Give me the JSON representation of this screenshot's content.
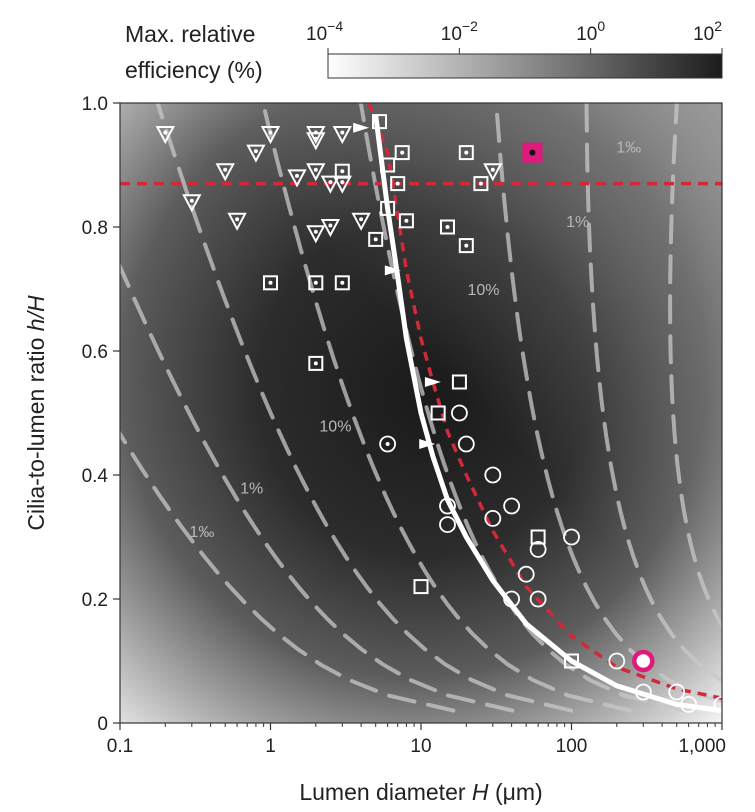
{
  "chart_data": {
    "type": "heatmap",
    "xlabel": "Lumen diameter",
    "xlabel_symbol": "H",
    "xlabel_unit": "(μm)",
    "ylabel": "Cilia-to-lumen ratio",
    "ylabel_symbol": "h/H",
    "xscale": "log",
    "xlim": [
      0.1,
      1000
    ],
    "ylim": [
      0,
      1
    ],
    "xticks": [
      {
        "value": 0.1,
        "label": "0.1"
      },
      {
        "value": 1,
        "label": "1"
      },
      {
        "value": 10,
        "label": "10"
      },
      {
        "value": 100,
        "label": "100"
      },
      {
        "value": 1000,
        "label": "1,000"
      }
    ],
    "yticks": [
      {
        "value": 0,
        "label": "0"
      },
      {
        "value": 0.2,
        "label": "0.2"
      },
      {
        "value": 0.4,
        "label": "0.4"
      },
      {
        "value": 0.6,
        "label": "0.6"
      },
      {
        "value": 0.8,
        "label": "0.8"
      },
      {
        "value": 1.0,
        "label": "1.0"
      }
    ],
    "colorbar": {
      "title_lines": [
        "Max. relative",
        "efficiency (%)"
      ],
      "scale": "log",
      "range": [
        0.0001,
        100
      ],
      "ticks": [
        {
          "value": 0.0001,
          "base": "10",
          "exp": "−4"
        },
        {
          "value": 0.01,
          "base": "10",
          "exp": "−2"
        },
        {
          "value": 1,
          "base": "10",
          "exp": "0"
        },
        {
          "value": 100,
          "base": "10",
          "exp": "2"
        }
      ],
      "colors": [
        "#ffffff",
        "#1c1c1c"
      ]
    },
    "contour_labels": [
      {
        "text": "1‰",
        "x": 0.35,
        "y": 0.3
      },
      {
        "text": "1%",
        "x": 0.75,
        "y": 0.37
      },
      {
        "text": "10%",
        "x": 2.7,
        "y": 0.47
      },
      {
        "text": "10%",
        "x": 26,
        "y": 0.69
      },
      {
        "text": "1%",
        "x": 110,
        "y": 0.8
      },
      {
        "text": "1‰",
        "x": 240,
        "y": 0.92
      }
    ],
    "optimum_curve": {
      "name": "",
      "color": "#ffffff",
      "x": [
        5,
        6,
        7,
        8,
        10,
        12,
        15,
        20,
        30,
        50,
        100,
        200,
        500,
        1000
      ],
      "y": [
        0.98,
        0.83,
        0.72,
        0.62,
        0.5,
        0.43,
        0.36,
        0.3,
        0.23,
        0.16,
        0.1,
        0.06,
        0.03,
        0.02
      ]
    },
    "scaling_curve": {
      "name": "",
      "color": "#d02a3a",
      "x": [
        4.5,
        6,
        7,
        8,
        10,
        12,
        15,
        20,
        30,
        50,
        100,
        200,
        500,
        1000
      ],
      "y": [
        1.0,
        0.92,
        0.82,
        0.73,
        0.62,
        0.55,
        0.47,
        0.4,
        0.31,
        0.22,
        0.14,
        0.09,
        0.055,
        0.04
      ]
    },
    "threshold_line": {
      "y": 0.87,
      "color": "#d02a3a"
    },
    "series": [
      {
        "marker": "triangle-dot",
        "points": [
          [
            0.2,
            0.95
          ],
          [
            0.3,
            0.84
          ],
          [
            0.5,
            0.89
          ],
          [
            0.6,
            0.81
          ],
          [
            0.8,
            0.92
          ],
          [
            1,
            0.95
          ],
          [
            1.5,
            0.88
          ],
          [
            2,
            0.95
          ],
          [
            2,
            0.94
          ],
          [
            2,
            0.79
          ],
          [
            2,
            0.89
          ],
          [
            2.5,
            0.87
          ],
          [
            2.5,
            0.8
          ],
          [
            3,
            0.95
          ],
          [
            3,
            0.87
          ],
          [
            4,
            0.81
          ],
          [
            30,
            0.89
          ]
        ]
      },
      {
        "marker": "square-dot",
        "points": [
          [
            1,
            0.71
          ],
          [
            2,
            0.71
          ],
          [
            3,
            0.71
          ],
          [
            2,
            0.58
          ],
          [
            3,
            0.89
          ],
          [
            5,
            0.78
          ],
          [
            6,
            0.83
          ],
          [
            8,
            0.81
          ],
          [
            15,
            0.8
          ],
          [
            20,
            0.77
          ],
          [
            7,
            0.87
          ],
          [
            7.5,
            0.92
          ],
          [
            20,
            0.92
          ],
          [
            25,
            0.87
          ]
        ]
      },
      {
        "marker": "square",
        "points": [
          [
            5.3,
            0.97
          ],
          [
            6,
            0.9
          ],
          [
            18,
            0.55
          ],
          [
            13,
            0.5
          ],
          [
            10,
            0.22
          ],
          [
            60,
            0.3
          ],
          [
            100,
            0.1
          ]
        ]
      },
      {
        "marker": "circle-dot",
        "points": [
          [
            6,
            0.45
          ]
        ]
      },
      {
        "marker": "circle",
        "points": [
          [
            18,
            0.5
          ],
          [
            20,
            0.45
          ],
          [
            15,
            0.35
          ],
          [
            15,
            0.32
          ],
          [
            30,
            0.4
          ],
          [
            30,
            0.33
          ],
          [
            40,
            0.35
          ],
          [
            50,
            0.24
          ],
          [
            40,
            0.2
          ],
          [
            60,
            0.2
          ],
          [
            60,
            0.28
          ],
          [
            100,
            0.3
          ],
          [
            200,
            0.1
          ],
          [
            300,
            0.05
          ],
          [
            500,
            0.05
          ],
          [
            600,
            0.03
          ],
          [
            1000,
            0.03
          ]
        ]
      },
      {
        "marker": "arrow",
        "points": [
          [
            4,
            0.96
          ],
          [
            6.5,
            0.73
          ],
          [
            12,
            0.55
          ],
          [
            11,
            0.45
          ]
        ]
      },
      {
        "marker": "highlight-square",
        "color": "#e0197d",
        "points": [
          [
            55,
            0.92
          ]
        ]
      },
      {
        "marker": "highlight-circle",
        "color": "#e0197d",
        "points": [
          [
            300,
            0.1
          ]
        ]
      }
    ]
  }
}
